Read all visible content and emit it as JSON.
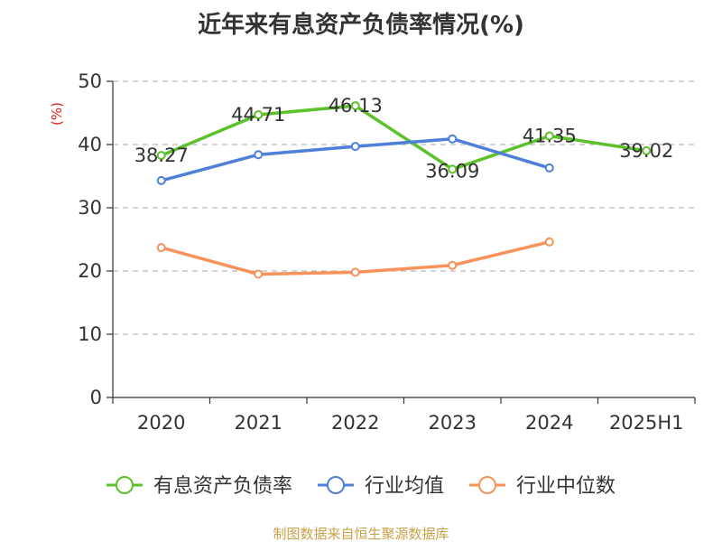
{
  "chart_data": {
    "type": "line",
    "title": "近年来有息资产负债率情况(%)",
    "ylabel": "(%)",
    "categories": [
      "2020",
      "2021",
      "2022",
      "2023",
      "2024",
      "2025H1"
    ],
    "ylim": [
      0,
      50
    ],
    "yticks": [
      0,
      10,
      20,
      30,
      40,
      50
    ],
    "grid": true,
    "legend_position": "bottom",
    "series": [
      {
        "name": "有息资产负债率",
        "color": "#5cc12b",
        "values": [
          38.27,
          44.71,
          46.13,
          36.09,
          41.35,
          39.02
        ],
        "labels": [
          "38.27",
          "44.71",
          "46.13",
          "36.09",
          "41.35",
          "39.02"
        ]
      },
      {
        "name": "行业均值",
        "color": "#4f7fd8",
        "values": [
          34.3,
          38.4,
          39.7,
          40.9,
          36.3,
          null
        ]
      },
      {
        "name": "行业中位数",
        "color": "#f7925a",
        "values": [
          23.7,
          19.5,
          19.8,
          20.9,
          24.6,
          null
        ]
      }
    ]
  },
  "source": "制图数据来自恒生聚源数据库"
}
